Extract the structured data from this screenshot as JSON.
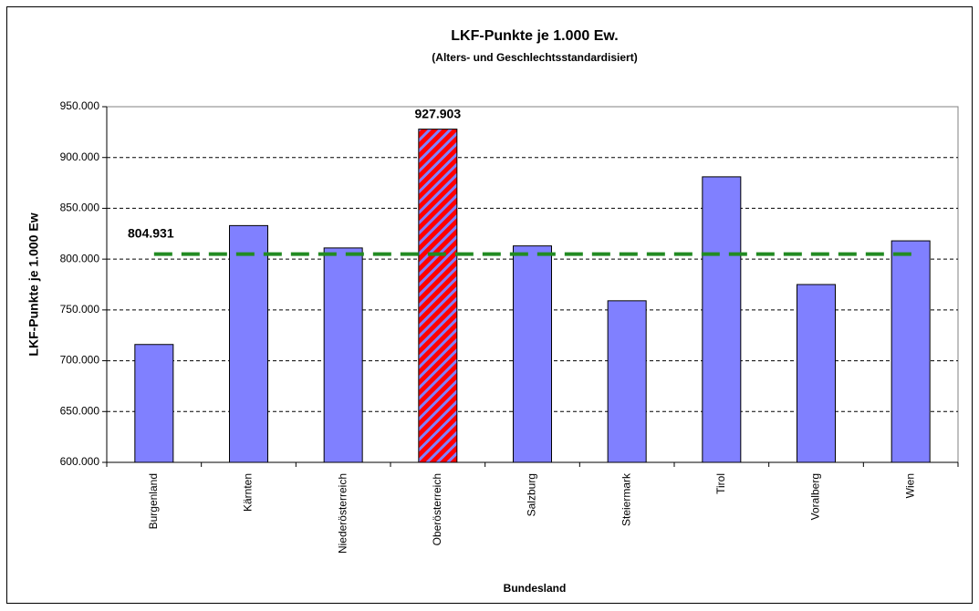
{
  "chart_data": {
    "type": "bar",
    "title": "LKF-Punkte je 1.000 Ew.",
    "subtitle": "(Alters- und Geschlechtsstandardisiert)",
    "x_label": "Bundesland",
    "y_label": "LKF-Punkte je 1.000 Ew",
    "categories": [
      "Burgenland",
      "Kärnten",
      "Niederösterreich",
      "Oberösterreich",
      "Salzburg",
      "Steiermark",
      "Tirol",
      "Voralberg",
      "Wien"
    ],
    "values": [
      716,
      833,
      811,
      927.903,
      813,
      759,
      881,
      775,
      818
    ],
    "value_labels": [
      null,
      null,
      null,
      "927.903",
      null,
      null,
      null,
      null,
      null
    ],
    "color": "#8080ff",
    "highlight_index": 3,
    "highlight_color": "#ff0000",
    "reference": {
      "value": 804.931,
      "label": "804.931",
      "color": "#228b22"
    },
    "ylim": [
      600,
      950
    ],
    "yticks": [
      {
        "value": 600,
        "label": "600.000"
      },
      {
        "value": 650,
        "label": "650.000"
      },
      {
        "value": 700,
        "label": "700.000"
      },
      {
        "value": 750,
        "label": "750.000"
      },
      {
        "value": 800,
        "label": "800.000"
      },
      {
        "value": 850,
        "label": "850.000"
      },
      {
        "value": 900,
        "label": "900.000"
      },
      {
        "value": 950,
        "label": "950.000"
      }
    ],
    "grid": true
  }
}
